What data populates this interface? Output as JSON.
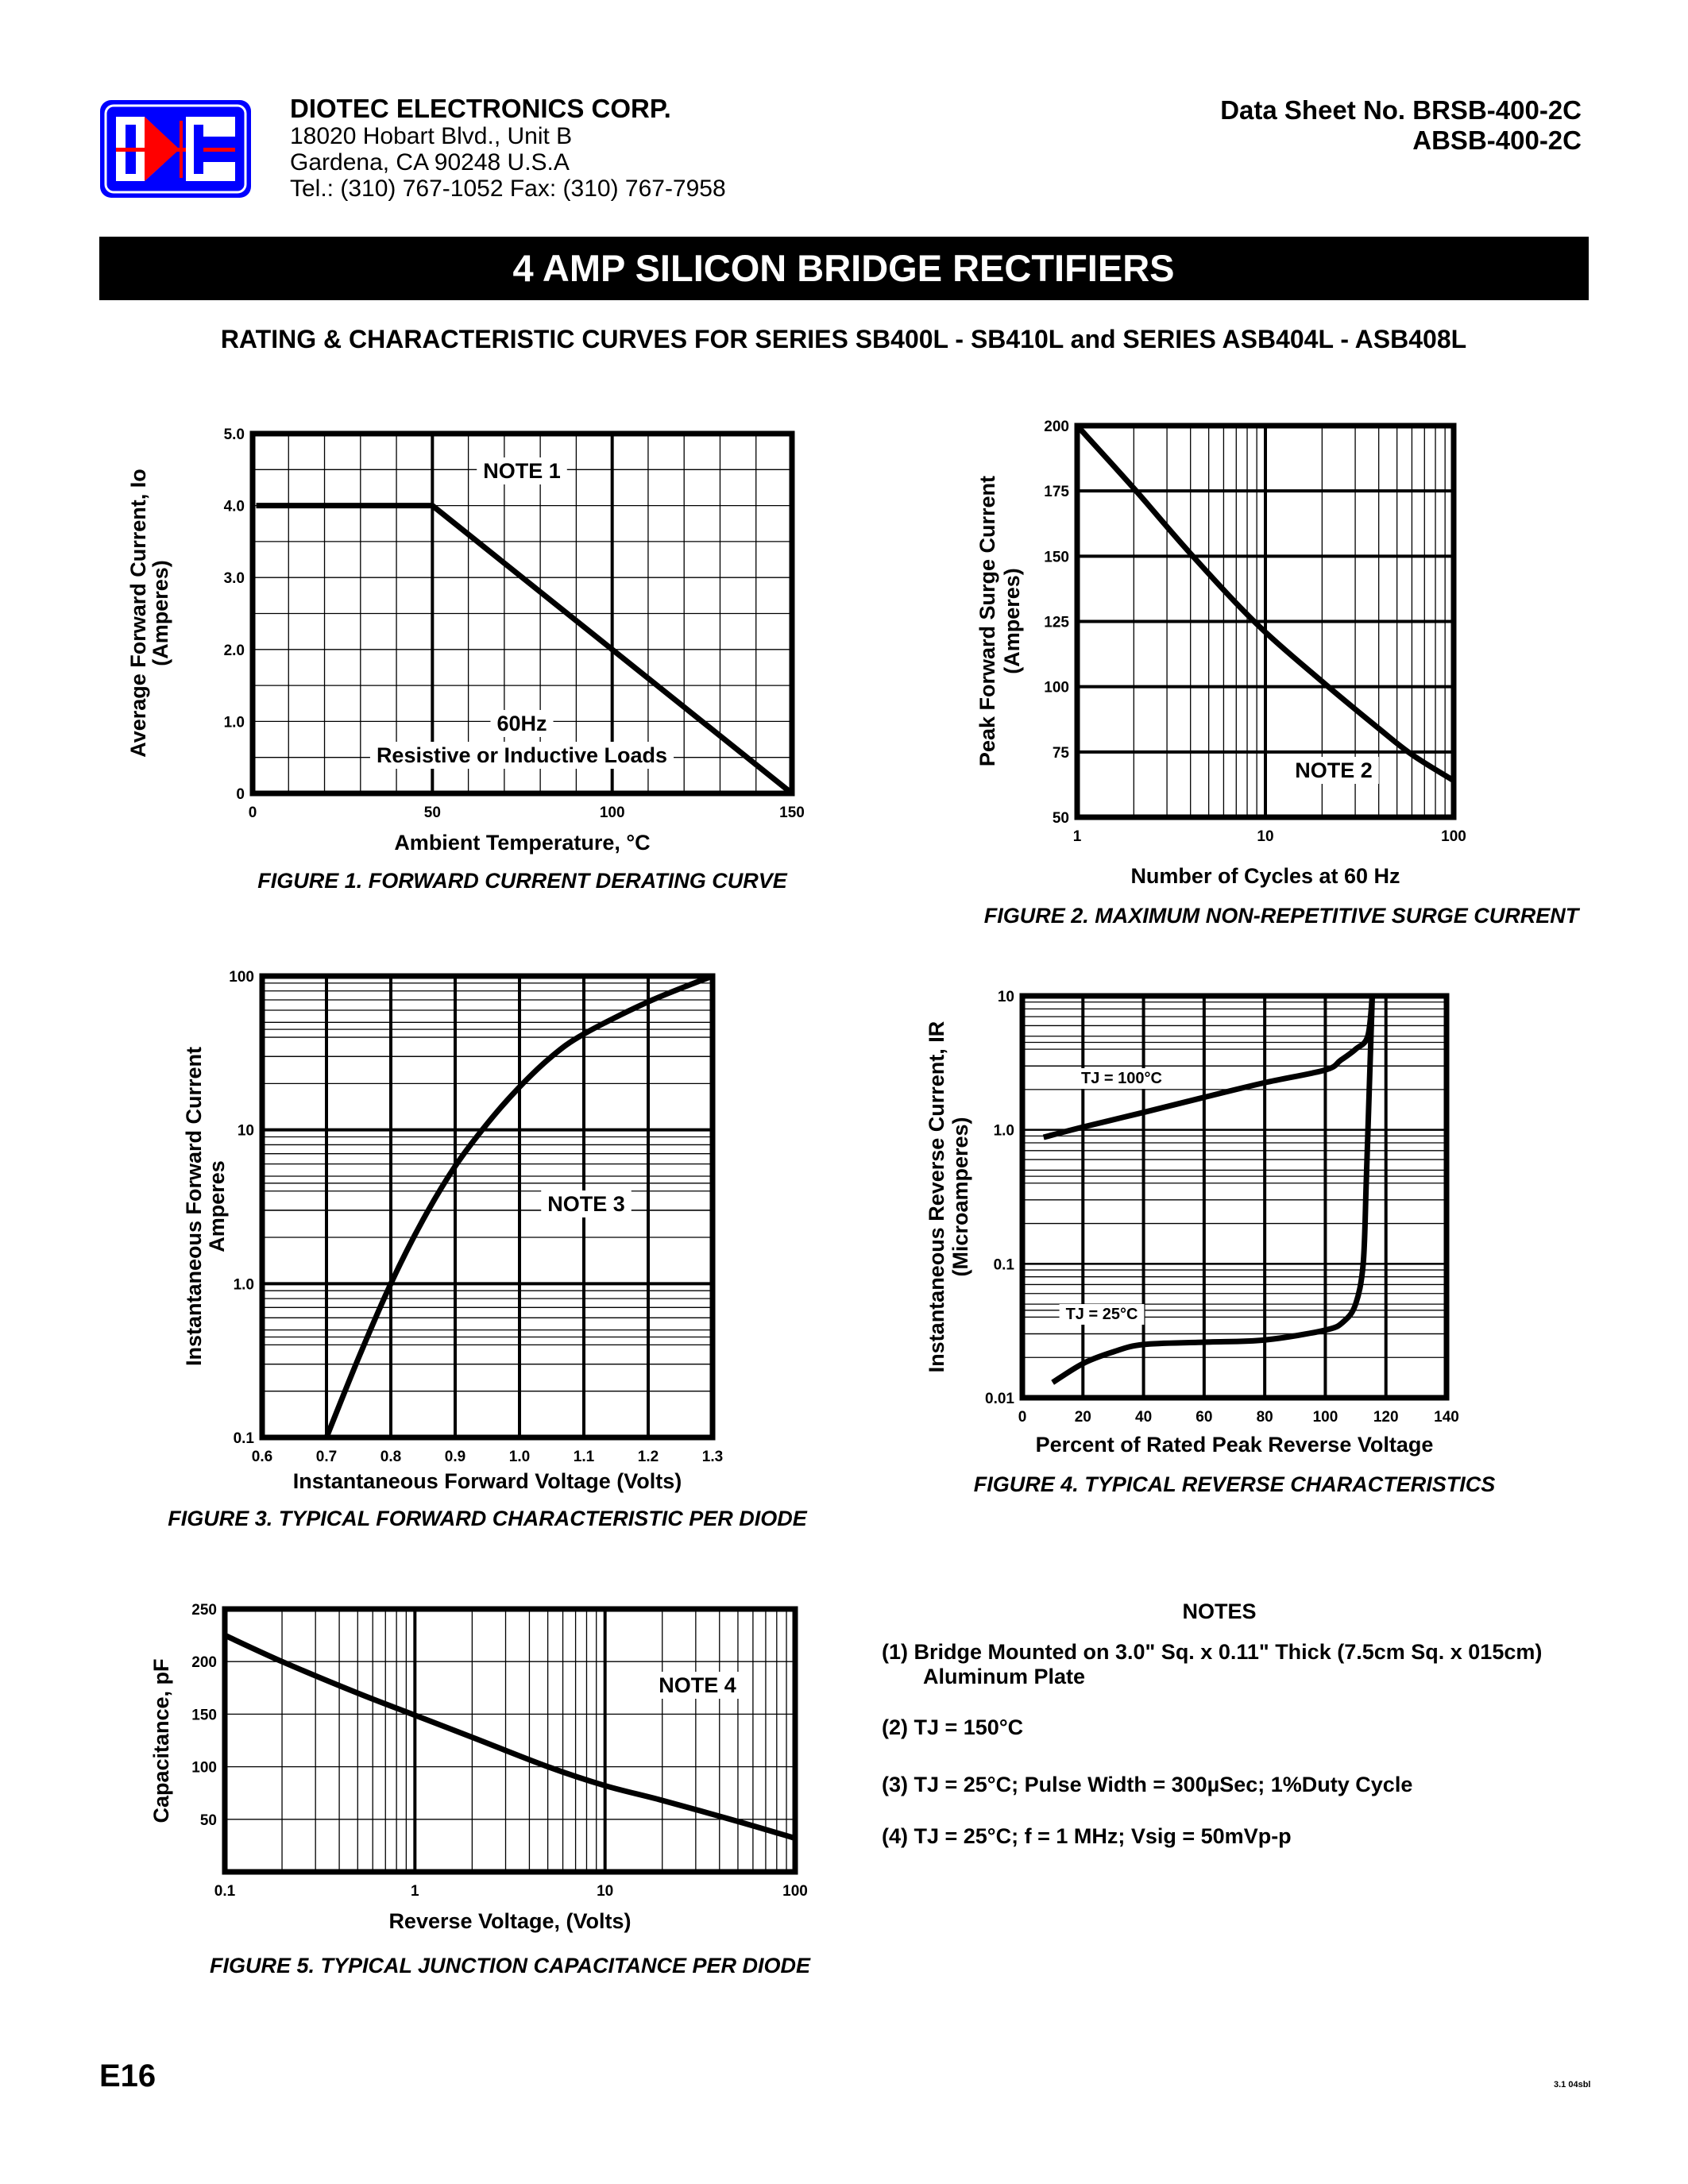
{
  "header": {
    "company": "DIOTEC   ELECTRONICS   CORP.",
    "address1": "18020 Hobart Blvd.,  Unit B",
    "address2": "Gardena, CA  90248    U.S.A",
    "phone": "Tel.:  (310) 767-1052    Fax:  (310) 767-7958",
    "datasheet_label": "Data Sheet No.  BRSB-400-2C",
    "datasheet_alt": "ABSB-400-2C",
    "logo_text": "DIC",
    "logo_colors": {
      "blue": "#0000ff",
      "red": "#ff0000"
    }
  },
  "title": "4 AMP SILICON BRIDGE RECTIFIERS",
  "subtitle": "RATING & CHARACTERISTIC CURVES FOR SERIES SB400L - SB410L and SERIES ASB404L - ASB408L",
  "notes": {
    "heading": "NOTES",
    "items": [
      "(1)  Bridge Mounted on 3.0\" Sq. x 0.11\" Thick (7.5cm Sq. x 015cm)",
      "Aluminum Plate",
      "(2) TJ = 150°C",
      "(3) TJ = 25°C; Pulse Width = 300µSec; 1%Duty Cycle",
      "(4) TJ = 25°C; f = 1 MHz; Vsig = 50mVp-p"
    ]
  },
  "footer": {
    "page": "E16",
    "code": "3.1  04sbl"
  },
  "chart_data": [
    {
      "type": "line",
      "caption": "FIGURE 1.  FORWARD CURRENT DERATING CURVE",
      "xlabel": "Ambient  Temperature, °C",
      "ylabel": [
        "Average Forward Current, Io",
        "(Amperes)"
      ],
      "xscale": "linear",
      "xlim": [
        0,
        150
      ],
      "yscale": "linear",
      "ylim": [
        0,
        5
      ],
      "grid": true,
      "x_ticks": [
        {
          "v": 0,
          "label": "0"
        },
        {
          "v": 50,
          "label": "50"
        },
        {
          "v": 100,
          "label": "100"
        },
        {
          "v": 150,
          "label": "150"
        }
      ],
      "y_ticks": [
        {
          "v": 0,
          "label": "0"
        },
        {
          "v": 1,
          "label": "1.0"
        },
        {
          "v": 2,
          "label": "2.0"
        },
        {
          "v": 3,
          "label": "3.0"
        },
        {
          "v": 4,
          "label": "4.0"
        },
        {
          "v": 5,
          "label": "5.0"
        }
      ],
      "annotations": [
        "NOTE 1",
        "60Hz",
        "Resistive or Inductive Loads"
      ],
      "series": [
        {
          "points": [
            [
              1,
              4.0
            ],
            [
              50,
              4.0
            ],
            [
              150,
              0
            ]
          ]
        }
      ]
    },
    {
      "type": "line",
      "caption": "FIGURE 2.  MAXIMUM NON-REPETITIVE SURGE CURRENT",
      "xlabel": "Number of Cycles at 60 Hz",
      "ylabel": [
        "Peak Forward Surge Current",
        "(Amperes)"
      ],
      "xscale": "log",
      "xlim": [
        1,
        100
      ],
      "yscale": "linear",
      "ylim": [
        50,
        200
      ],
      "grid": true,
      "x_ticks": [
        {
          "v": 1,
          "label": "1"
        },
        {
          "v": 10,
          "label": "10"
        },
        {
          "v": 100,
          "label": "100"
        }
      ],
      "y_ticks": [
        {
          "v": 50,
          "label": "50"
        },
        {
          "v": 75,
          "label": "75"
        },
        {
          "v": 100,
          "label": "100"
        },
        {
          "v": 125,
          "label": "125"
        },
        {
          "v": 150,
          "label": "150"
        },
        {
          "v": 175,
          "label": "175"
        },
        {
          "v": 200,
          "label": "200"
        }
      ],
      "annotations": [
        "NOTE 2"
      ],
      "series": [
        {
          "points": [
            [
              1,
              200
            ],
            [
              2,
              176
            ],
            [
              4,
              151
            ],
            [
              9,
              124
            ],
            [
              20,
              102
            ],
            [
              40,
              84
            ],
            [
              60,
              74
            ],
            [
              100,
              64
            ]
          ]
        }
      ]
    },
    {
      "type": "line",
      "caption": "FIGURE 3.  TYPICAL FORWARD CHARACTERISTIC PER DIODE",
      "xlabel": "Instantaneous Forward Voltage (Volts)",
      "ylabel": [
        "Instantaneous Forward Current",
        "Amperes"
      ],
      "xscale": "linear",
      "xlim": [
        0.6,
        1.3
      ],
      "yscale": "log",
      "ylim": [
        0.1,
        100
      ],
      "grid": true,
      "x_ticks": [
        {
          "v": 0.6,
          "label": "0.6"
        },
        {
          "v": 0.7,
          "label": "0.7"
        },
        {
          "v": 0.8,
          "label": "0.8"
        },
        {
          "v": 0.9,
          "label": "0.9"
        },
        {
          "v": 1.0,
          "label": "1.0"
        },
        {
          "v": 1.1,
          "label": "1.1"
        },
        {
          "v": 1.2,
          "label": "1.2"
        },
        {
          "v": 1.3,
          "label": "1.3"
        }
      ],
      "y_ticks": [
        {
          "v": 0.1,
          "label": "0.1"
        },
        {
          "v": 1,
          "label": "1.0"
        },
        {
          "v": 10,
          "label": "10"
        },
        {
          "v": 100,
          "label": "100"
        }
      ],
      "annotations": [
        "NOTE 3"
      ],
      "series": [
        {
          "points": [
            [
              0.7,
              0.1
            ],
            [
              0.75,
              0.33
            ],
            [
              0.8,
              1.0
            ],
            [
              0.85,
              2.6
            ],
            [
              0.9,
              5.8
            ],
            [
              0.95,
              11
            ],
            [
              1.0,
              19
            ],
            [
              1.05,
              30
            ],
            [
              1.1,
              42
            ],
            [
              1.2,
              68
            ],
            [
              1.3,
              100
            ]
          ]
        }
      ]
    },
    {
      "type": "line",
      "caption": "FIGURE 4.  TYPICAL REVERSE CHARACTERISTICS",
      "xlabel": "Percent of Rated Peak Reverse Voltage",
      "ylabel": [
        "Instantaneous Reverse Current, IR",
        "(Microamperes)"
      ],
      "xscale": "linear",
      "xlim": [
        0,
        140
      ],
      "yscale": "log",
      "ylim": [
        0.01,
        10
      ],
      "grid": true,
      "x_ticks": [
        {
          "v": 0,
          "label": "0"
        },
        {
          "v": 20,
          "label": "20"
        },
        {
          "v": 40,
          "label": "40"
        },
        {
          "v": 60,
          "label": "60"
        },
        {
          "v": 80,
          "label": "80"
        },
        {
          "v": 100,
          "label": "100"
        },
        {
          "v": 120,
          "label": "120"
        },
        {
          "v": 140,
          "label": "140"
        }
      ],
      "y_ticks": [
        {
          "v": 0.01,
          "label": "0.01"
        },
        {
          "v": 0.1,
          "label": "0.1"
        },
        {
          "v": 1,
          "label": "1.0"
        },
        {
          "v": 10,
          "label": "10"
        }
      ],
      "annotations": [],
      "series": [
        {
          "name": "TJ = 100°C",
          "points": [
            [
              7,
              0.88
            ],
            [
              20,
              1.05
            ],
            [
              40,
              1.35
            ],
            [
              60,
              1.75
            ],
            [
              80,
              2.25
            ],
            [
              100,
              2.8
            ],
            [
              105,
              3.3
            ],
            [
              110,
              4.0
            ],
            [
              114,
              5.0
            ],
            [
              115.5,
              10
            ]
          ]
        },
        {
          "name": "TJ = 25°C",
          "points": [
            [
              10,
              0.013
            ],
            [
              20,
              0.018
            ],
            [
              30,
              0.022
            ],
            [
              40,
              0.025
            ],
            [
              60,
              0.026
            ],
            [
              80,
              0.027
            ],
            [
              100,
              0.032
            ],
            [
              106,
              0.037
            ],
            [
              110,
              0.05
            ],
            [
              112.5,
              0.1
            ],
            [
              113.5,
              0.4
            ],
            [
              114.5,
              2
            ],
            [
              115.5,
              10
            ]
          ]
        }
      ]
    },
    {
      "type": "line",
      "caption": "FIGURE 5.  TYPICAL JUNCTION CAPACITANCE PER DIODE",
      "xlabel": "Reverse Voltage, (Volts)",
      "ylabel": [
        "Capacitance, pF"
      ],
      "xscale": "log",
      "xlim": [
        0.1,
        100
      ],
      "yscale": "linear",
      "ylim": [
        0,
        250
      ],
      "grid": true,
      "x_ticks": [
        {
          "v": 0.1,
          "label": "0.1"
        },
        {
          "v": 1,
          "label": "1"
        },
        {
          "v": 10,
          "label": "10"
        },
        {
          "v": 100,
          "label": "100"
        }
      ],
      "y_ticks": [
        {
          "v": 50,
          "label": "50"
        },
        {
          "v": 100,
          "label": "100"
        },
        {
          "v": 150,
          "label": "150"
        },
        {
          "v": 200,
          "label": "200"
        },
        {
          "v": 250,
          "label": "250"
        }
      ],
      "annotations": [
        "NOTE 4"
      ],
      "series": [
        {
          "points": [
            [
              0.1,
              225
            ],
            [
              0.2,
              200
            ],
            [
              0.5,
              170
            ],
            [
              1,
              149
            ],
            [
              2,
              128
            ],
            [
              5,
              100
            ],
            [
              10,
              82
            ],
            [
              20,
              68
            ],
            [
              50,
              48
            ],
            [
              100,
              32
            ]
          ]
        }
      ]
    }
  ]
}
